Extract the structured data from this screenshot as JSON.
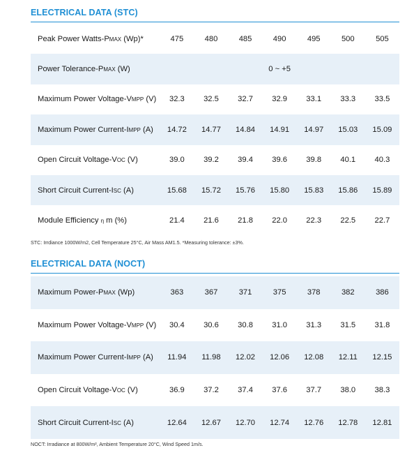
{
  "stc": {
    "title": "ELECTRICAL DATA (STC)",
    "rows": [
      {
        "label": "Peak Power Watts-P",
        "sub": "MAX",
        "after": " (Wp)*",
        "values": [
          "475",
          "480",
          "485",
          "490",
          "495",
          "500",
          "505"
        ]
      },
      {
        "label": "Power Tolerance-P",
        "sub": "MAX",
        "after": " (W)",
        "span_value": "0 ~ +5"
      },
      {
        "label": "Maximum Power Voltage-V",
        "sub": "MPP",
        "after": " (V)",
        "values": [
          "32.3",
          "32.5",
          "32.7",
          "32.9",
          "33.1",
          "33.3",
          "33.5"
        ]
      },
      {
        "label": "Maximum Power Current-I",
        "sub": "MPP",
        "after": " (A)",
        "values": [
          "14.72",
          "14.77",
          "14.84",
          "14.91",
          "14.97",
          "15.03",
          "15.09"
        ]
      },
      {
        "label": "Open Circuit Voltage-V",
        "sub": "OC",
        "after": " (V)",
        "values": [
          "39.0",
          "39.2",
          "39.4",
          "39.6",
          "39.8",
          "40.1",
          "40.3"
        ]
      },
      {
        "label": "Short Circuit Current-I",
        "sub": "SC",
        "after": " (A)",
        "values": [
          "15.68",
          "15.72",
          "15.76",
          "15.80",
          "15.83",
          "15.86",
          "15.89"
        ]
      },
      {
        "label": "Module Efficiency ",
        "sub": "η",
        "after": " m (%)",
        "values": [
          "21.4",
          "21.6",
          "21.8",
          "22.0",
          "22.3",
          "22.5",
          "22.7"
        ]
      }
    ],
    "footnote": "STC: Irrdiance 1000W/m2, Cell Temperature 25°C, Air Mass AM1.5.   *Measuring tolerance: ±3%."
  },
  "noct": {
    "title": "ELECTRICAL DATA (NOCT)",
    "rows": [
      {
        "label": "Maximum Power-P",
        "sub": "MAX",
        "after": " (Wp)",
        "values": [
          "363",
          "367",
          "371",
          "375",
          "378",
          "382",
          "386"
        ]
      },
      {
        "label": "Maximum Power Voltage-V",
        "sub": "MPP",
        "after": " (V)",
        "values": [
          "30.4",
          "30.6",
          "30.8",
          "31.0",
          "31.3",
          "31.5",
          "31.8"
        ]
      },
      {
        "label": "Maximum Power Current-I",
        "sub": "MPP",
        "after": " (A)",
        "values": [
          "11.94",
          "11.98",
          "12.02",
          "12.06",
          "12.08",
          "12.11",
          "12.15"
        ]
      },
      {
        "label": "Open Circuit Voltage-V",
        "sub": "OC",
        "after": " (V)",
        "values": [
          "36.9",
          "37.2",
          "37.4",
          "37.6",
          "37.7",
          "38.0",
          "38.3"
        ]
      },
      {
        "label": "Short Circuit Current-I",
        "sub": "SC",
        "after": " (A)",
        "values": [
          "12.64",
          "12.67",
          "12.70",
          "12.74",
          "12.76",
          "12.78",
          "12.81"
        ]
      }
    ],
    "footnote": "NOCT: Irradiance at 800W/m², Ambient Temperature 20°C, Wind Speed 1m/s."
  },
  "colors": {
    "accent": "#1f8fd4",
    "row_shade": "#e7f0f8"
  }
}
